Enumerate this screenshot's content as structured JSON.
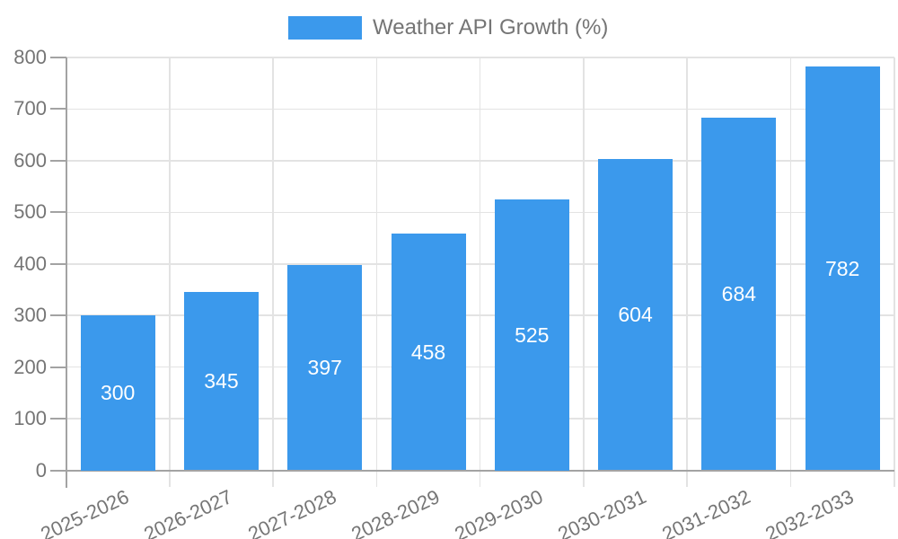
{
  "chart_data": {
    "type": "bar",
    "title": "",
    "legend": {
      "position": "top",
      "label": "Weather API Growth (%)"
    },
    "categories": [
      "2025-2026",
      "2026-2027",
      "2027-2028",
      "2028-2029",
      "2029-2030",
      "2030-2031",
      "2031-2032",
      "2032-2033"
    ],
    "values": [
      300,
      345,
      397,
      458,
      525,
      604,
      684,
      782
    ],
    "value_labels_shown_inside_bars": true,
    "xlabel": "",
    "ylabel": "",
    "ylim": [
      0,
      800
    ],
    "yticks": [
      0,
      100,
      200,
      300,
      400,
      500,
      600,
      700,
      800
    ],
    "grid": true,
    "x_label_rotation_deg": -25,
    "colors": {
      "bar": "#3b99ec",
      "axis_text": "#757575",
      "grid_line": "#e3e3e3",
      "axis_line": "#a3a3a3",
      "value_label": "#ffffff"
    }
  }
}
